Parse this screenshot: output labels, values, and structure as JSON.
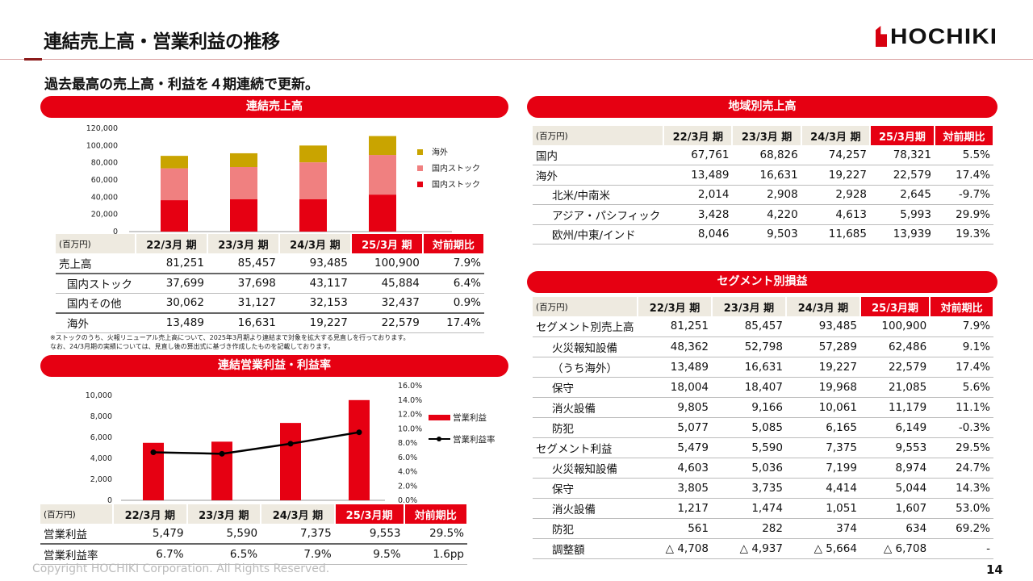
{
  "header": {
    "title": "連結売上高・営業利益の推移",
    "logo_text": "HOCHIKI",
    "subtitle": "過去最高の売上高・利益を４期連続で更新。"
  },
  "colors": {
    "accent": "#e60012",
    "pink": "#f08080",
    "gold": "#c9a400"
  },
  "sales": {
    "banner": "連結売上高",
    "chart_data": {
      "type": "bar",
      "stacked": true,
      "categories": [
        "22/3月期",
        "23/3月期",
        "24/3月期",
        "25/3月期"
      ],
      "ylim": [
        0,
        120000
      ],
      "yticks": [
        "0",
        "20,000",
        "40,000",
        "60,000",
        "80,000",
        "100,000",
        "120,000"
      ],
      "legend_position": "right",
      "series": [
        {
          "name": "国内ストック",
          "color": "#e60012",
          "values": [
            36500,
            37500,
            37500,
            43000
          ]
        },
        {
          "name": "国内ストック",
          "color": "#f08080",
          "values": [
            37000,
            37500,
            43000,
            46000
          ]
        },
        {
          "name": "海外",
          "color": "#c9a400",
          "values": [
            14500,
            16000,
            19500,
            22000
          ]
        }
      ]
    },
    "table": {
      "unit": "(百万円)",
      "headers": [
        "22/3月 期",
        "23/3月 期",
        "24/3月 期",
        "25/3月 期",
        "対前期比"
      ],
      "rows": [
        {
          "label": "売上高",
          "values": [
            "81,251",
            "85,457",
            "93,485",
            "100,900",
            "7.9%"
          ]
        },
        {
          "label": "国内ストック",
          "values": [
            "37,699",
            "37,698",
            "43,117",
            "45,884",
            "6.4%"
          ]
        },
        {
          "label": "国内その他",
          "values": [
            "30,062",
            "31,127",
            "32,153",
            "32,437",
            "0.9%"
          ]
        },
        {
          "label": "海外",
          "values": [
            "13,489",
            "16,631",
            "19,227",
            "22,579",
            "17.4%"
          ]
        }
      ]
    },
    "note": [
      "※ストックのうち、火報リニューアル売上高について、2025年3月期より連結まで対象を拡大する見直しを行っております。",
      "なお、24/3月期の実績については、見直し後の算出式に基づき作成したものを記載しております。"
    ]
  },
  "profit": {
    "banner": "連結営業利益・利益率",
    "chart_data": {
      "type": "bar+line",
      "categories": [
        "22/3月期",
        "23/3月期",
        "24/3月期",
        "25/3月期"
      ],
      "ylim": [
        0,
        10000
      ],
      "yticks": [
        "0",
        "2,000",
        "4,000",
        "6,000",
        "8,000",
        "10,000"
      ],
      "y2lim": [
        0,
        16
      ],
      "y2ticks": [
        "0.0%",
        "2.0%",
        "4.0%",
        "6.0%",
        "8.0%",
        "10.0%",
        "12.0%",
        "14.0%",
        "16.0%"
      ],
      "legend_position": "right",
      "series": [
        {
          "name": "営業利益",
          "type": "bar",
          "color": "#e60012",
          "values": [
            5479,
            5590,
            7375,
            9553
          ]
        },
        {
          "name": "営業利益率",
          "type": "line",
          "color": "#000000",
          "axis": "right",
          "values": [
            6.7,
            6.5,
            7.9,
            9.5
          ]
        }
      ]
    },
    "table": {
      "unit": "(百万円)",
      "headers": [
        "22/3月 期",
        "23/3月 期",
        "24/3月 期",
        "25/3月期",
        "対前期比"
      ],
      "rows": [
        {
          "label": "営業利益",
          "values": [
            "5,479",
            "5,590",
            "7,375",
            "9,553",
            "29.5%"
          ]
        },
        {
          "label": "営業利益率",
          "values": [
            "6.7%",
            "6.5%",
            "7.9%",
            "9.5%",
            "1.6pp"
          ]
        }
      ]
    }
  },
  "region": {
    "banner": "地域別売上高",
    "table": {
      "unit": "(百万円)",
      "headers": [
        "22/3月 期",
        "23/3月 期",
        "24/3月 期",
        "25/3月期",
        "対前期比"
      ],
      "rows": [
        {
          "label": "国内",
          "level": 0,
          "values": [
            "67,761",
            "68,826",
            "74,257",
            "78,321",
            "5.5%"
          ]
        },
        {
          "label": "海外",
          "level": 0,
          "values": [
            "13,489",
            "16,631",
            "19,227",
            "22,579",
            "17.4%"
          ]
        },
        {
          "label": "北米/中南米",
          "level": 1,
          "values": [
            "2,014",
            "2,908",
            "2,928",
            "2,645",
            "-9.7%"
          ]
        },
        {
          "label": "アジア・パシフィック",
          "level": 1,
          "values": [
            "3,428",
            "4,220",
            "4,613",
            "5,993",
            "29.9%"
          ]
        },
        {
          "label": "欧州/中東/インド",
          "level": 1,
          "values": [
            "8,046",
            "9,503",
            "11,685",
            "13,939",
            "19.3%"
          ]
        }
      ]
    }
  },
  "segment": {
    "banner": "セグメント別損益",
    "table": {
      "unit": "(百万円)",
      "headers": [
        "22/3月 期",
        "23/3月 期",
        "24/3月 期",
        "25/3月期",
        "対前期比"
      ],
      "rows": [
        {
          "label": "セグメント別売上高",
          "level": 0,
          "values": [
            "81,251",
            "85,457",
            "93,485",
            "100,900",
            "7.9%"
          ]
        },
        {
          "label": "火災報知設備",
          "level": 1,
          "values": [
            "48,362",
            "52,798",
            "57,289",
            "62,486",
            "9.1%"
          ]
        },
        {
          "label": "（うち海外）",
          "level": 1,
          "values": [
            "13,489",
            "16,631",
            "19,227",
            "22,579",
            "17.4%"
          ]
        },
        {
          "label": "保守",
          "level": 1,
          "values": [
            "18,004",
            "18,407",
            "19,968",
            "21,085",
            "5.6%"
          ]
        },
        {
          "label": "消火設備",
          "level": 1,
          "values": [
            "9,805",
            "9,166",
            "10,061",
            "11,179",
            "11.1%"
          ]
        },
        {
          "label": "防犯",
          "level": 1,
          "values": [
            "5,077",
            "5,085",
            "6,165",
            "6,149",
            "-0.3%"
          ]
        },
        {
          "label": "セグメント利益",
          "level": 0,
          "values": [
            "5,479",
            "5,590",
            "7,375",
            "9,553",
            "29.5%"
          ]
        },
        {
          "label": "火災報知設備",
          "level": 1,
          "values": [
            "4,603",
            "5,036",
            "7,199",
            "8,974",
            "24.7%"
          ]
        },
        {
          "label": "保守",
          "level": 1,
          "values": [
            "3,805",
            "3,735",
            "4,414",
            "5,044",
            "14.3%"
          ]
        },
        {
          "label": "消火設備",
          "level": 1,
          "values": [
            "1,217",
            "1,474",
            "1,051",
            "1,607",
            "53.0%"
          ]
        },
        {
          "label": "防犯",
          "level": 1,
          "values": [
            "561",
            "282",
            "374",
            "634",
            "69.2%"
          ]
        },
        {
          "label": "調整額",
          "level": 1,
          "values": [
            "△ 4,708",
            "△ 4,937",
            "△ 5,664",
            "△ 6,708",
            "-"
          ]
        }
      ]
    }
  },
  "footer": {
    "copyright": "Copyright HOCHIKI Corporation. All Rights Reserved.",
    "page": "14"
  }
}
